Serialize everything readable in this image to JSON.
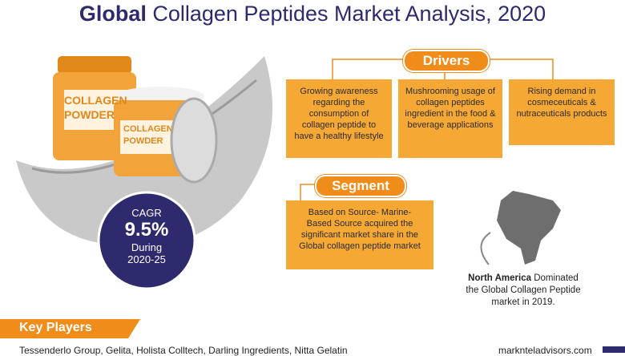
{
  "header": {
    "title_bold": "Global",
    "title_rest": "Collagen Peptides Market Analysis, 2020"
  },
  "jars": {
    "large_line1": "COLLAGEN",
    "large_line2": "POWDER",
    "small_line1": "COLLAGEN",
    "small_line2": "POWDER"
  },
  "cagr": {
    "label": "CAGR",
    "value": "9.5%",
    "during": "During",
    "period": "2020-25"
  },
  "drivers": {
    "heading": "Drivers",
    "items": [
      "Growing awareness regarding the consumption of collagen peptide to have a healthy lifestyle",
      "Mushrooming usage of collagen peptides ingredient in the food & beverage applications",
      "Rising demand in cosmeceuticals & nutraceuticals products"
    ]
  },
  "segment": {
    "heading": "Segment",
    "text": "Based on Source- Marine-Based Source acquired the significant market share in the Global collagen peptide market"
  },
  "region": {
    "bold": "North America",
    "text": "Dominated the Global Collagen Peptide market in 2019."
  },
  "key_players": {
    "heading": "Key Players",
    "text": "Tessenderlo Group, Gelita, Holista Colltech, Darling Ingredients, Nitta Gelatin"
  },
  "footer": {
    "site": "marknteladvisors.com"
  }
}
